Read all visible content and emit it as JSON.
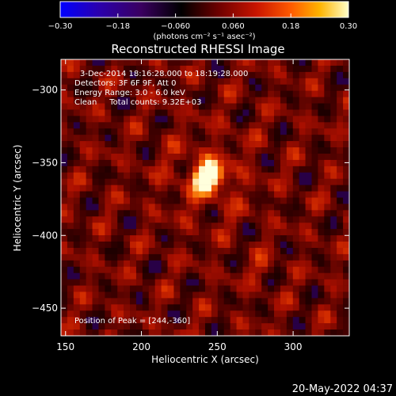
{
  "chart_data": {
    "type": "heatmap",
    "title": "Reconstructed RHESSI Image",
    "xlabel": "Heliocentric X (arcsec)",
    "ylabel": "Heliocentric Y (arcsec)",
    "xlim": [
      147,
      337
    ],
    "ylim": [
      -469,
      -279
    ],
    "x_ticks": [
      150,
      200,
      250,
      300
    ],
    "y_ticks": [
      -300,
      -350,
      -400,
      -450
    ],
    "peak": {
      "x": 244,
      "y": -360
    },
    "colorbar": {
      "range": [
        -0.3,
        0.3
      ],
      "ticks": [
        "-0.30",
        "-0.18",
        "-0.060",
        "0.060",
        "0.18",
        "0.30"
      ],
      "unit_label": "(photons cm⁻² s⁻¹ asec⁻²)",
      "colormap": [
        "#0000ff",
        "#2a00b0",
        "#3a0060",
        "#000000",
        "#6e0000",
        "#c81400",
        "#ff5a00",
        "#ffb400",
        "#ffffc8"
      ]
    },
    "info": [
      "3-Dec-2014 18:16:28.000 to 18:19:28.000",
      "Detectors: 3F 6F 9F, Att 0",
      "Energy Range: 3.0 - 6.0 keV",
      "Clean     Total counts: 9.32E+03"
    ],
    "peak_label": "Position of Peak = [244,-360]",
    "timestamp": "20-May-2022 04:37"
  }
}
